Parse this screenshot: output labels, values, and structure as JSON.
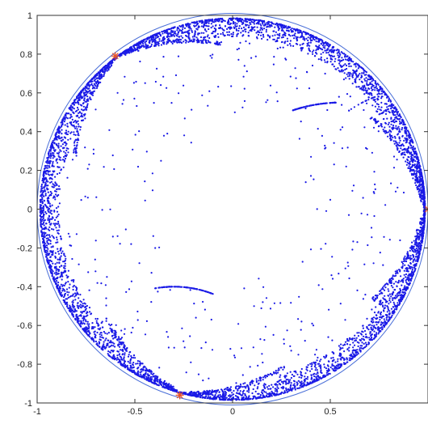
{
  "chart_data": {
    "type": "scatter",
    "title": "",
    "xlabel": "",
    "ylabel": "",
    "xlim": [
      -1,
      1
    ],
    "ylim": [
      -1,
      1
    ],
    "grid": false,
    "legend": "none",
    "x_ticks": [
      "-1",
      "-0.5",
      "0",
      "0.5"
    ],
    "y_ticks": [
      "1",
      "0.8",
      "0.6",
      "0.4",
      "0.2",
      "0",
      "-0.2",
      "-0.4",
      "-0.6",
      "-0.8",
      "-1"
    ],
    "unit_circle": {
      "radius": 1,
      "color": "#4a6fd8"
    },
    "marker_points": {
      "color": "#e8542a",
      "x": [
        -0.6,
        -0.27,
        1.0
      ],
      "y": [
        0.79,
        -0.96,
        0.0
      ]
    },
    "dot_color": "#1a1ae6"
  }
}
